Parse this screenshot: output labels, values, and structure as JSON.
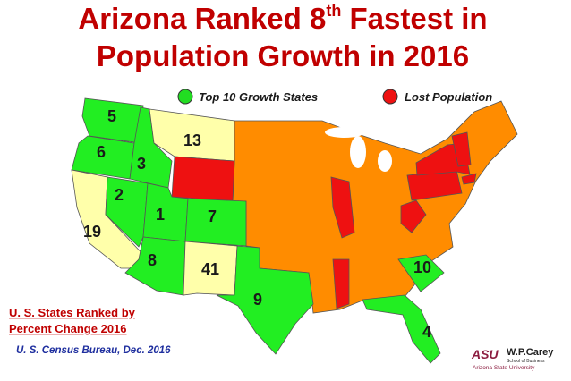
{
  "title": {
    "before": "Arizona Ranked 8",
    "sup": "th",
    "after": " Fastest in",
    "line2": "Population Growth in 2016"
  },
  "legend": [
    "Top 10 Growth States",
    "Lost Population"
  ],
  "states": [
    {
      "label": "5"
    },
    {
      "label": "6"
    },
    {
      "label": "3"
    },
    {
      "label": "13"
    },
    {
      "label": "2"
    },
    {
      "label": "1"
    },
    {
      "label": "7"
    },
    {
      "label": "19"
    },
    {
      "label": "8"
    },
    {
      "label": "41"
    },
    {
      "label": "9"
    },
    {
      "label": "10"
    },
    {
      "label": "4"
    }
  ],
  "note": [
    "U. S. States Ranked by",
    "Percent Change 2016"
  ],
  "source": "U. S. Census Bureau, Dec. 2016",
  "logo": {
    "mark": "ASU",
    "name": "W.P.Carey",
    "school": "School of Business",
    "university": "Arizona State University"
  }
}
